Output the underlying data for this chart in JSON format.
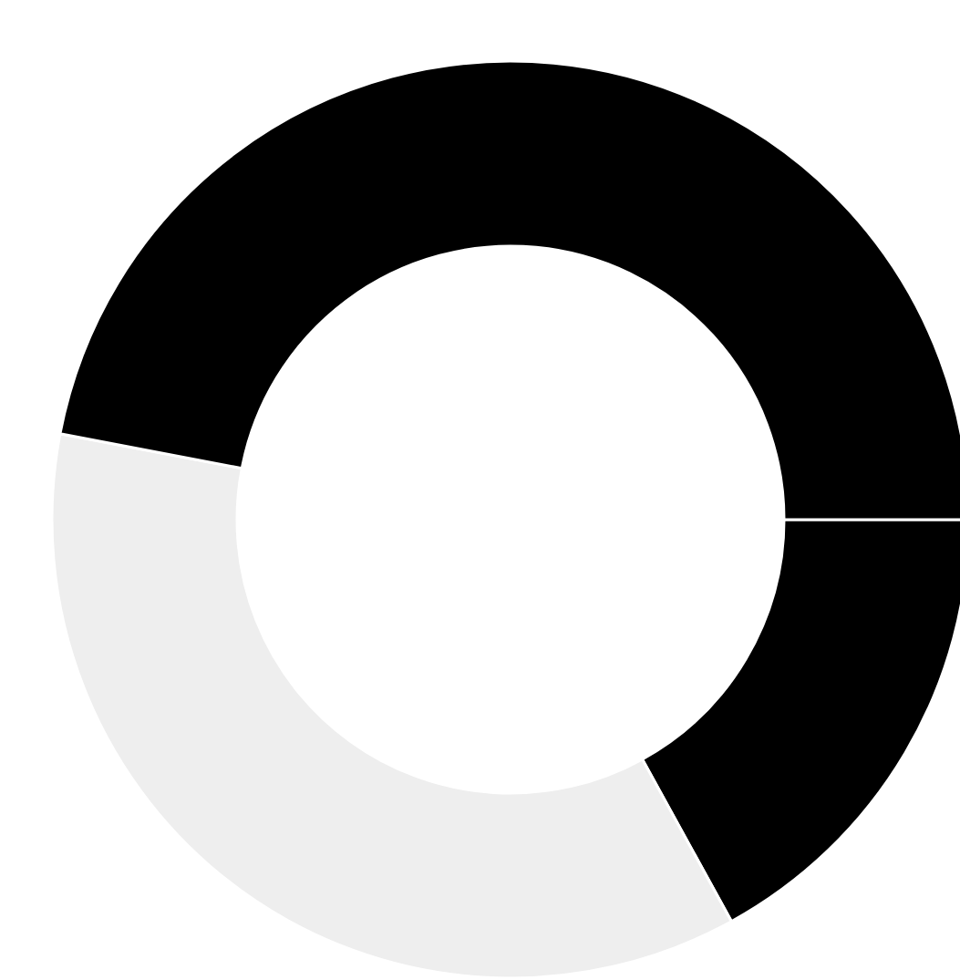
{
  "chart_data": {
    "type": "donut",
    "categories": [
      null,
      null,
      null
    ],
    "values": [
      17,
      36,
      47
    ],
    "colors": [
      "#000000",
      "#eeeeee",
      "#000000"
    ]
  }
}
